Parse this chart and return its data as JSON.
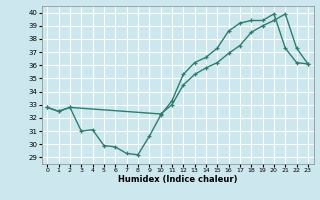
{
  "line1_x": [
    0,
    1,
    2,
    3,
    4,
    5,
    6,
    7,
    8,
    9,
    10,
    11,
    12,
    13,
    14,
    15,
    16,
    17,
    18,
    19,
    20,
    21,
    22,
    23
  ],
  "line1_y": [
    32.8,
    32.5,
    32.8,
    31.0,
    31.1,
    29.9,
    29.8,
    29.3,
    29.2,
    30.6,
    32.2,
    33.3,
    35.3,
    36.2,
    36.6,
    37.3,
    38.6,
    39.2,
    39.4,
    39.4,
    39.9,
    37.3,
    36.2,
    36.1
  ],
  "line2_x": [
    0,
    1,
    2,
    10,
    11,
    12,
    13,
    14,
    15,
    16,
    17,
    18,
    19,
    20,
    21,
    22,
    23
  ],
  "line2_y": [
    32.8,
    32.5,
    32.8,
    32.3,
    33.0,
    34.5,
    35.3,
    35.8,
    36.2,
    36.9,
    37.5,
    38.5,
    39.0,
    39.4,
    39.9,
    37.3,
    36.1
  ],
  "color": "#2e7d6e",
  "bgcolor": "#cce8ee",
  "grid_color": "#ffffff",
  "xlabel": "Humidex (Indice chaleur)",
  "xlim": [
    -0.5,
    23.5
  ],
  "ylim": [
    28.5,
    40.5
  ],
  "yticks": [
    29,
    30,
    31,
    32,
    33,
    34,
    35,
    36,
    37,
    38,
    39,
    40
  ],
  "xticks": [
    0,
    1,
    2,
    3,
    4,
    5,
    6,
    7,
    8,
    9,
    10,
    11,
    12,
    13,
    14,
    15,
    16,
    17,
    18,
    19,
    20,
    21,
    22,
    23
  ],
  "marker": "+",
  "linewidth": 1.0,
  "markersize": 3.5,
  "markeredgewidth": 0.9
}
